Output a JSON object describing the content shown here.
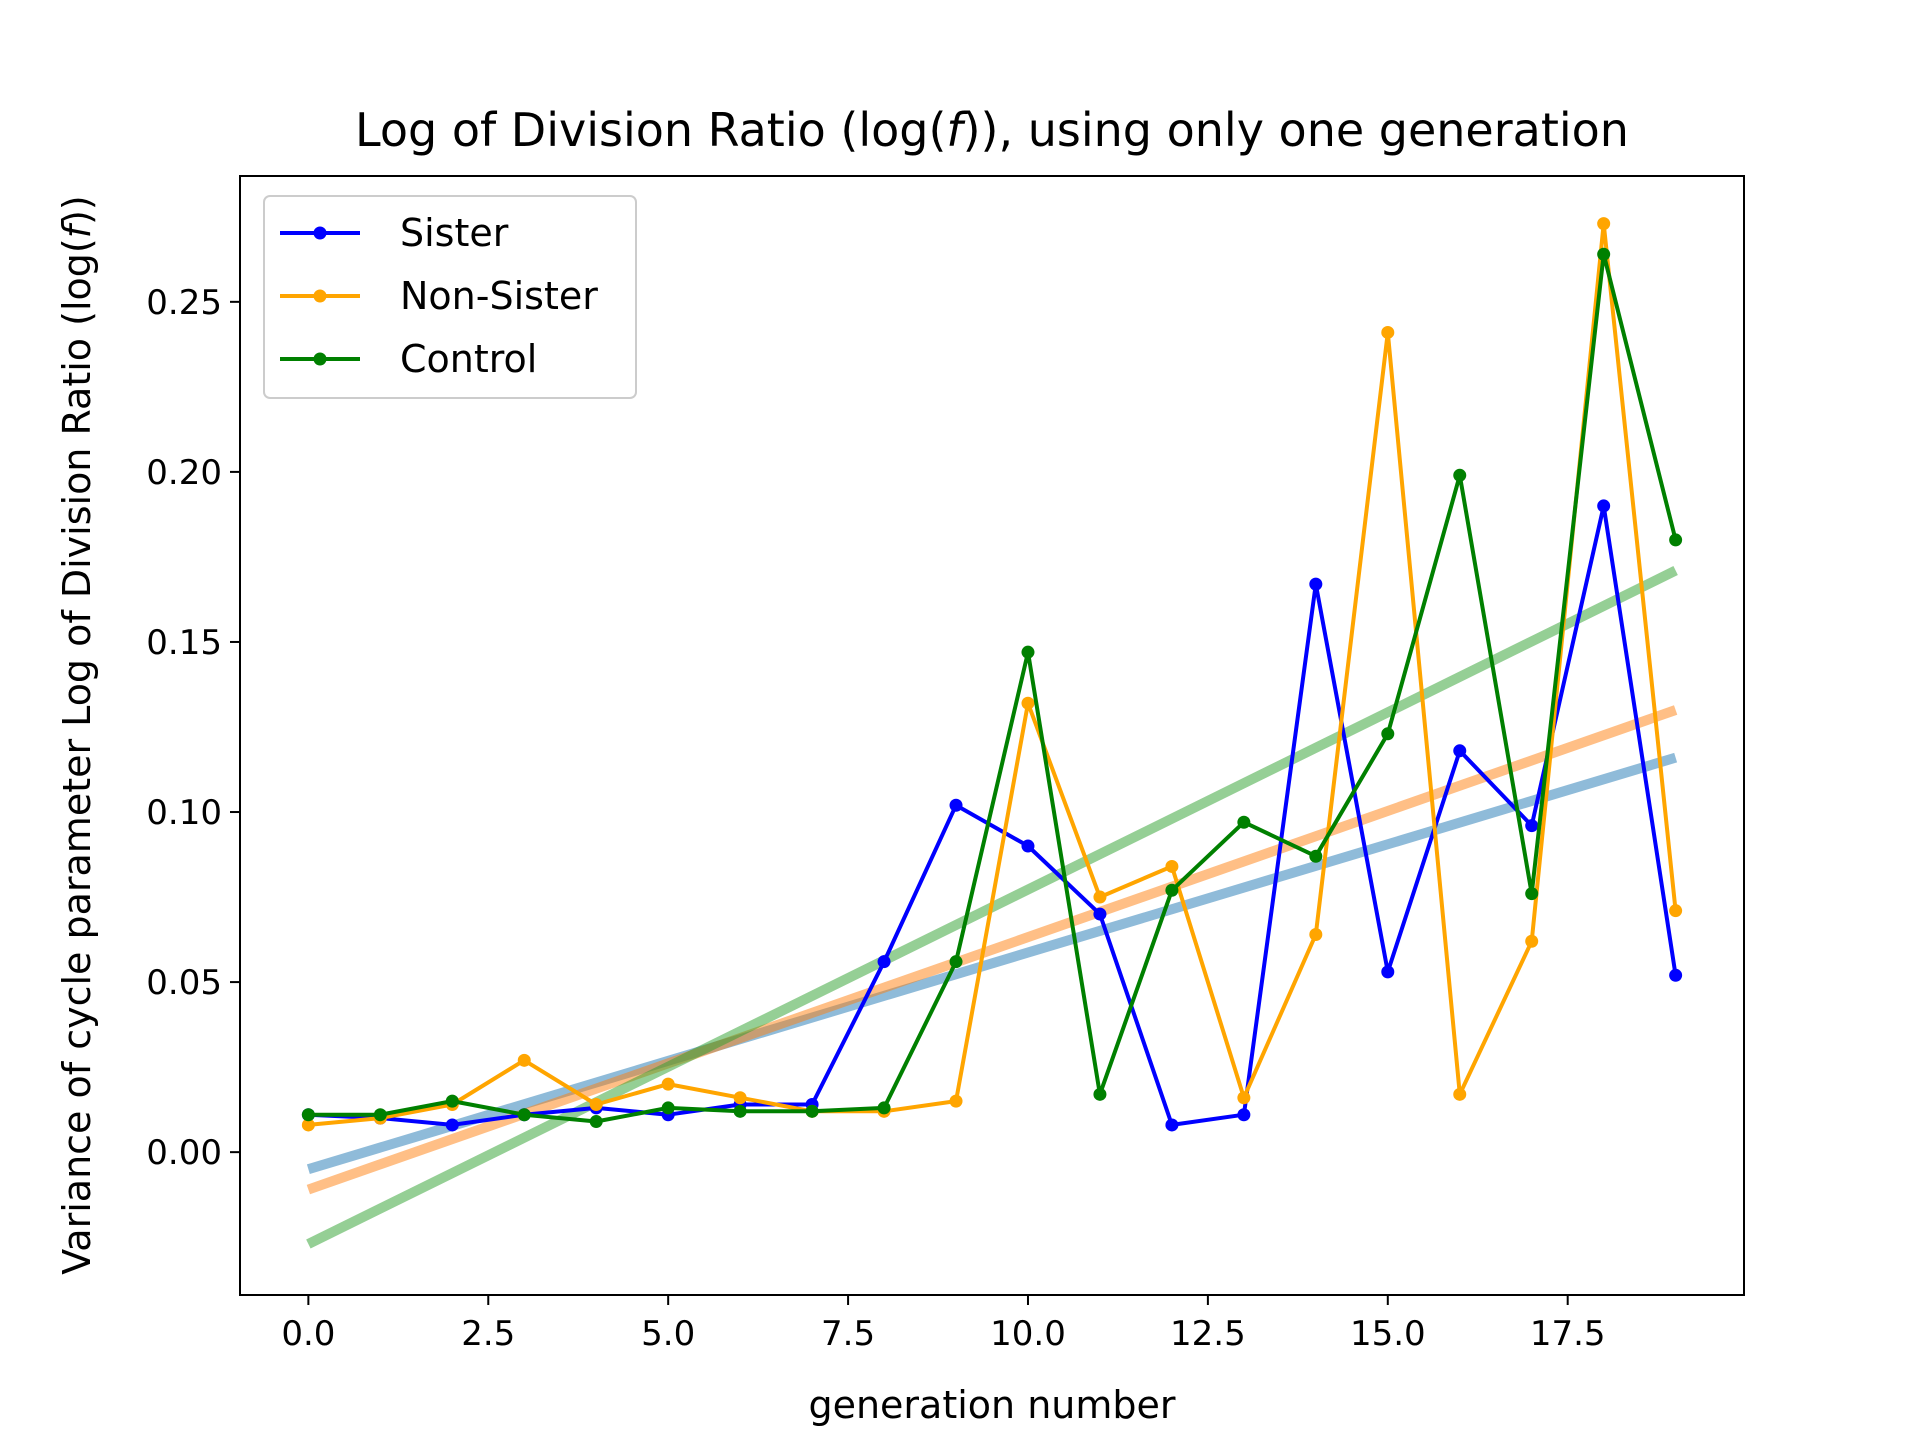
{
  "chart_data": {
    "type": "line",
    "title": "Log of Division Ratio (log(f)), using only one generation",
    "title_parts": [
      "Log of Division Ratio (log(",
      "f",
      ")), using only one generation"
    ],
    "xlabel": "generation number",
    "ylabel": "Variance of cycle parameter Log of Division Ratio (log(f))",
    "ylabel_parts": [
      "Variance of cycle parameter Log of Division Ratio (log(",
      "f",
      "))"
    ],
    "xlim": [
      -0.95,
      19.95
    ],
    "ylim": [
      -0.042,
      0.287
    ],
    "xticks": [
      0.0,
      2.5,
      5.0,
      7.5,
      10.0,
      12.5,
      15.0,
      17.5
    ],
    "xtick_labels": [
      "0.0",
      "2.5",
      "5.0",
      "7.5",
      "10.0",
      "12.5",
      "15.0",
      "17.5"
    ],
    "yticks": [
      0.0,
      0.05,
      0.1,
      0.15,
      0.2,
      0.25
    ],
    "ytick_labels": [
      "0.00",
      "0.05",
      "0.10",
      "0.15",
      "0.20",
      "0.25"
    ],
    "grid": false,
    "legend_position": "top-left",
    "x": [
      0,
      1,
      2,
      3,
      4,
      5,
      6,
      7,
      8,
      9,
      10,
      11,
      12,
      13,
      14,
      15,
      16,
      17,
      18,
      19
    ],
    "series": [
      {
        "name": "Sister",
        "color": "#0000ff",
        "values": [
          0.011,
          0.01,
          0.008,
          0.011,
          0.013,
          0.011,
          0.014,
          0.014,
          0.056,
          0.102,
          0.09,
          0.07,
          0.008,
          0.011,
          0.167,
          0.053,
          0.118,
          0.096,
          0.19,
          0.052
        ],
        "trend": {
          "color": "#1f77b4",
          "start": [
            0,
            -0.005
          ],
          "end": [
            19,
            0.116
          ]
        }
      },
      {
        "name": "Non-Sister",
        "color": "#ffa500",
        "values": [
          0.008,
          0.01,
          0.014,
          0.027,
          0.014,
          0.02,
          0.016,
          0.012,
          0.012,
          0.015,
          0.132,
          0.075,
          0.084,
          0.016,
          0.064,
          0.241,
          0.017,
          0.062,
          0.273,
          0.071
        ],
        "trend": {
          "color": "#ff7f0e",
          "start": [
            0,
            -0.011
          ],
          "end": [
            19,
            0.13
          ]
        }
      },
      {
        "name": "Control",
        "color": "#008000",
        "values": [
          0.011,
          0.011,
          0.015,
          0.011,
          0.009,
          0.013,
          0.012,
          0.012,
          0.013,
          0.056,
          0.147,
          0.017,
          0.077,
          0.097,
          0.087,
          0.123,
          0.199,
          0.076,
          0.264,
          0.18
        ],
        "trend": {
          "color": "#2ca02c",
          "start": [
            0,
            -0.027
          ],
          "end": [
            19,
            0.171
          ]
        }
      }
    ]
  }
}
